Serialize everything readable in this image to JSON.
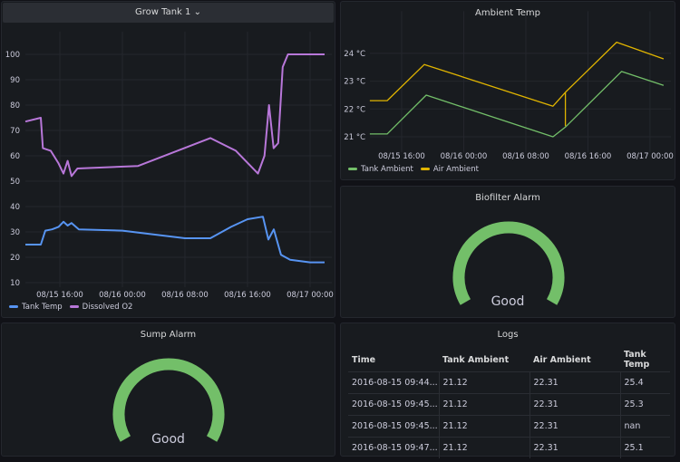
{
  "colors": {
    "tank_temp": "#5794f2",
    "dissolved_o2": "#b877d9",
    "tank_ambient": "#73bf69",
    "air_ambient": "#e0b400",
    "gauge": "#73bf69"
  },
  "grow_tank": {
    "title": "Grow Tank 1",
    "chevron_icon": "chevron-down-icon"
  },
  "chart_data": [
    {
      "type": "line",
      "title": "",
      "ylim": [
        10,
        100
      ],
      "yticks": [
        "10",
        "20",
        "30",
        "40",
        "50",
        "60",
        "70",
        "80",
        "90",
        "100"
      ],
      "xticks": [
        "08/15 16:00",
        "08/16 00:00",
        "08/16 08:00",
        "08/16 16:00",
        "08/17 00:00"
      ],
      "legend": "bottom-left",
      "grid": true,
      "series": [
        {
          "name": "Tank Temp",
          "color": "#5794f2",
          "points": [
            [
              "2016-08-15 11:36",
              25
            ],
            [
              "2016-08-15 13:34",
              25
            ],
            [
              "2016-08-15 14:09",
              30.5
            ],
            [
              "2016-08-15 15:00",
              31
            ],
            [
              "2016-08-15 15:50",
              32
            ],
            [
              "2016-08-15 16:28",
              34
            ],
            [
              "2016-08-15 17:00",
              32.5
            ],
            [
              "2016-08-15 17:30",
              33.5
            ],
            [
              "2016-08-15 18:26",
              31
            ],
            [
              "2016-08-16 00:00",
              30.5
            ],
            [
              "2016-08-16 08:00",
              27.5
            ],
            [
              "2016-08-16 11:15",
              27.5
            ],
            [
              "2016-08-16 13:54",
              32
            ],
            [
              "2016-08-16 16:00",
              35
            ],
            [
              "2016-08-16 17:58",
              36
            ],
            [
              "2016-08-16 18:40",
              27
            ],
            [
              "2016-08-16 19:22",
              31
            ],
            [
              "2016-08-16 20:17",
              21
            ],
            [
              "2016-08-16 21:27",
              19
            ],
            [
              "2016-08-17 00:00",
              18
            ],
            [
              "2016-08-17 01:51",
              18
            ]
          ]
        },
        {
          "name": "Dissolved O2",
          "color": "#b877d9",
          "points": [
            [
              "2016-08-15 11:36",
              73.5
            ],
            [
              "2016-08-15 13:34",
              75
            ],
            [
              "2016-08-15 13:50",
              63
            ],
            [
              "2016-08-15 14:50",
              62
            ],
            [
              "2016-08-15 15:50",
              57
            ],
            [
              "2016-08-15 16:28",
              53
            ],
            [
              "2016-08-15 17:00",
              58
            ],
            [
              "2016-08-15 17:30",
              52
            ],
            [
              "2016-08-15 18:15",
              55
            ],
            [
              "2016-08-16 02:00",
              56
            ],
            [
              "2016-08-16 11:15",
              67
            ],
            [
              "2016-08-16 14:30",
              62
            ],
            [
              "2016-08-16 17:20",
              53
            ],
            [
              "2016-08-16 18:10",
              60
            ],
            [
              "2016-08-16 18:45",
              80
            ],
            [
              "2016-08-16 19:20",
              63
            ],
            [
              "2016-08-16 19:55",
              65
            ],
            [
              "2016-08-16 20:30",
              95
            ],
            [
              "2016-08-16 21:10",
              100
            ],
            [
              "2016-08-17 01:51",
              100
            ]
          ]
        }
      ]
    },
    {
      "type": "line",
      "title": "Ambient Temp",
      "ylim": [
        20.6,
        24.7
      ],
      "yticks": [
        "21 °C",
        "22 °C",
        "23 °C",
        "24 °C"
      ],
      "xticks": [
        "08/15 16:00",
        "08/16 00:00",
        "08/16 08:00",
        "08/16 16:00",
        "08/17 00:00"
      ],
      "legend": "bottom-left",
      "grid": true,
      "series": [
        {
          "name": "Tank Ambient",
          "color": "#73bf69",
          "points": [
            [
              "2016-08-15 11:54",
              21.1
            ],
            [
              "2016-08-15 14:08",
              21.1
            ],
            [
              "2016-08-15 19:10",
              22.5
            ],
            [
              "2016-08-16 11:30",
              21.0
            ],
            [
              "2016-08-16 13:06",
              21.35
            ],
            [
              "2016-08-16 20:20",
              23.35
            ],
            [
              "2016-08-17 01:45",
              22.85
            ]
          ]
        },
        {
          "name": "Air Ambient",
          "color": "#e0b400",
          "points": [
            [
              "2016-08-15 11:54",
              22.3
            ],
            [
              "2016-08-15 14:08",
              22.3
            ],
            [
              "2016-08-15 18:55",
              23.6
            ],
            [
              "2016-08-16 11:30",
              22.1
            ],
            [
              "2016-08-16 13:06",
              22.6
            ],
            [
              "2016-08-16 13:06",
              21.4
            ],
            [
              "2016-08-16 13:06",
              22.6
            ],
            [
              "2016-08-16 19:42",
              24.4
            ],
            [
              "2016-08-17 01:45",
              23.8
            ]
          ]
        }
      ]
    }
  ],
  "biofilter": {
    "title": "Biofilter Alarm",
    "value": "Good",
    "fill_percent": 100
  },
  "sump": {
    "title": "Sump Alarm",
    "value": "Good",
    "fill_percent": 100
  },
  "logs": {
    "title": "Logs",
    "columns": [
      "Time",
      "Tank Ambient",
      "Air Ambient",
      "Tank Temp"
    ],
    "rows": [
      [
        "2016-08-15 09:44...",
        "21.12",
        "22.31",
        "25.4"
      ],
      [
        "2016-08-15 09:45...",
        "21.12",
        "22.31",
        "25.3"
      ],
      [
        "2016-08-15 09:45...",
        "21.12",
        "22.31",
        "nan"
      ],
      [
        "2016-08-15 09:47...",
        "21.12",
        "22.31",
        "25.1"
      ]
    ]
  }
}
